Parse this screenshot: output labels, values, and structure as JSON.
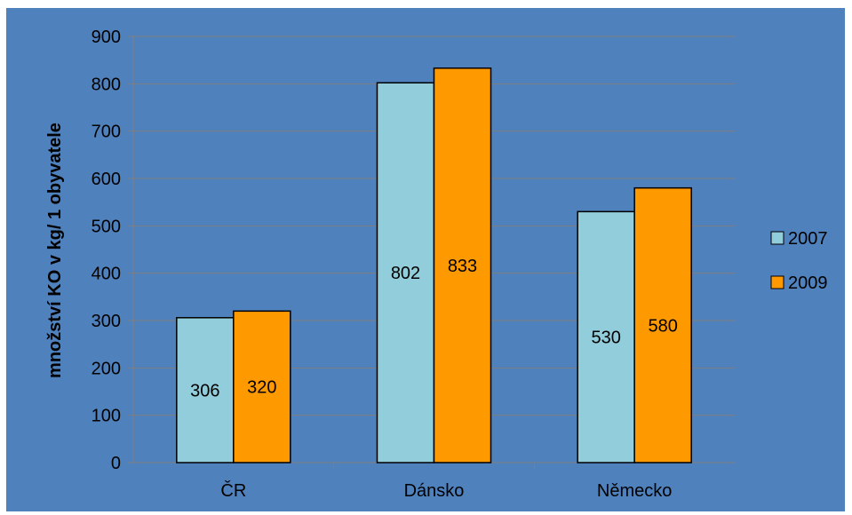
{
  "chart_data": {
    "type": "bar",
    "categories": [
      "ČR",
      "Dánsko",
      "Německo"
    ],
    "series": [
      {
        "name": "2007",
        "values": [
          306,
          802,
          530
        ],
        "color": "#92CDDC"
      },
      {
        "name": "2009",
        "values": [
          320,
          833,
          580
        ],
        "color": "#FF9900"
      }
    ],
    "title": "",
    "xlabel": "",
    "ylabel": "množství KO v kg/ 1 obyvatele",
    "ylim": [
      0,
      900
    ],
    "yticks": [
      0,
      100,
      200,
      300,
      400,
      500,
      600,
      700,
      800,
      900
    ],
    "grid": true,
    "legend_position": "right",
    "data_labels": true
  },
  "colors": {
    "background": "#4F81BD",
    "plot_area": "#4F81BD",
    "gridline": "#7F7F7F",
    "bar_outline": "#000000"
  }
}
